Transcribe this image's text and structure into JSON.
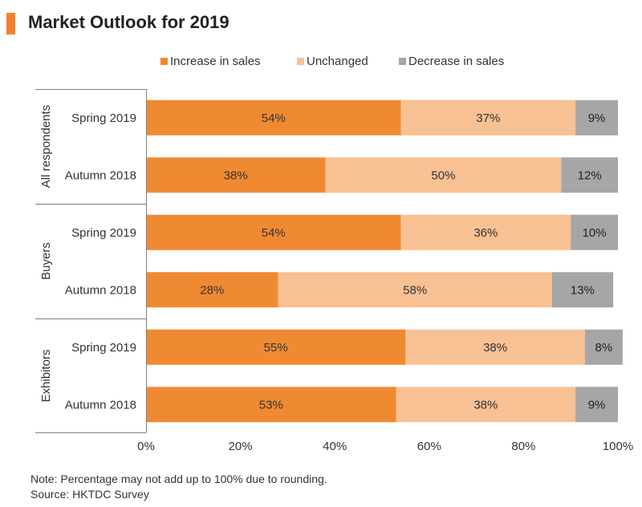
{
  "page": {
    "title": "Market Outlook for 2019",
    "note": "Note: Percentage may not add up to 100% due to rounding.",
    "source": "Source: HKTDC Survey"
  },
  "chart_data": {
    "type": "bar",
    "orientation": "horizontal",
    "stacked": true,
    "legend_position": "top",
    "grid": false,
    "xlim": [
      0,
      100
    ],
    "x_ticks": [
      "0%",
      "20%",
      "40%",
      "60%",
      "80%",
      "100%"
    ],
    "groups": [
      {
        "label": "All respondents",
        "categories": [
          "Spring 2019",
          "Autumn 2018"
        ]
      },
      {
        "label": "Buyers",
        "categories": [
          "Spring 2019",
          "Autumn 2018"
        ]
      },
      {
        "label": "Exhibitors",
        "categories": [
          "Spring 2019",
          "Autumn 2018"
        ]
      }
    ],
    "categories": [
      "Spring 2019",
      "Autumn 2018",
      "Spring 2019",
      "Autumn 2018",
      "Spring 2019",
      "Autumn 2018"
    ],
    "series": [
      {
        "name": "Increase in sales",
        "color": "#F08A32",
        "label_color": "#333333",
        "values": [
          54,
          38,
          54,
          28,
          55,
          53
        ]
      },
      {
        "name": "Unchanged",
        "color": "#F8C194",
        "label_color": "#333333",
        "values": [
          37,
          50,
          36,
          58,
          38,
          38
        ]
      },
      {
        "name": "Decrease in sales",
        "color": "#A6A6A6",
        "label_color": "#222222",
        "values": [
          9,
          12,
          10,
          13,
          8,
          9
        ]
      }
    ]
  }
}
